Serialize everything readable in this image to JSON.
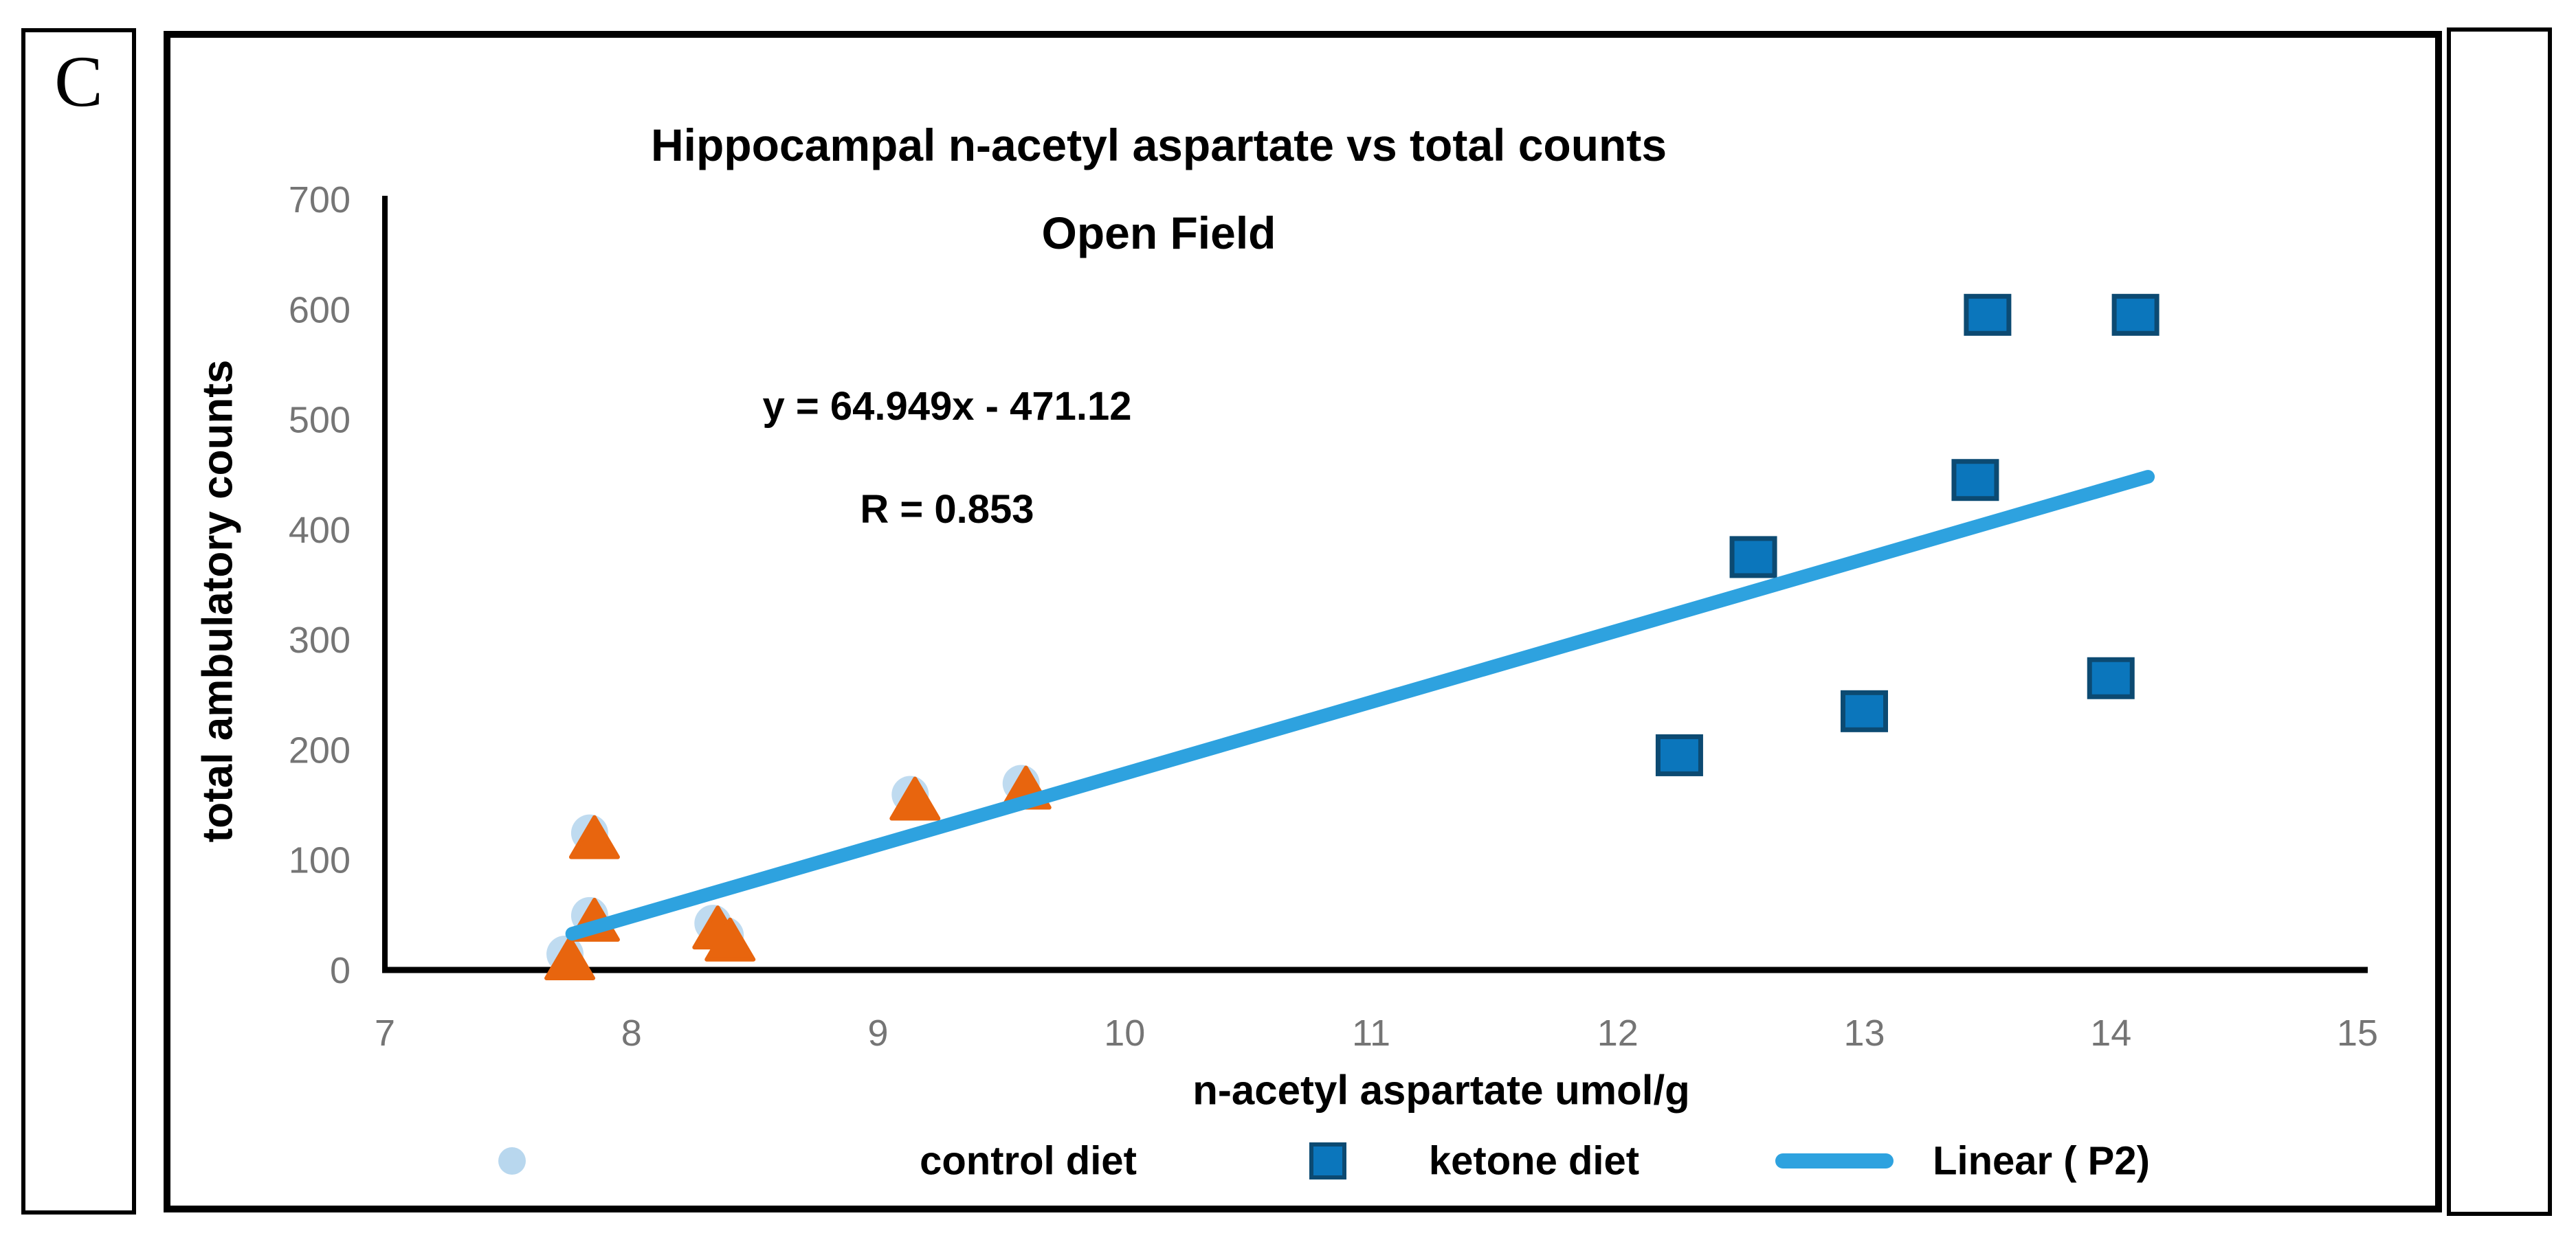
{
  "figure": {
    "panel_label": "C"
  },
  "chart_data": {
    "type": "scatter",
    "title_line1": "Hippocampal n-acetyl aspartate vs total counts",
    "title_line2": "Open Field",
    "annotation": {
      "equation": "y = 64.949x - 471.12",
      "r_value": "R = 0.853"
    },
    "xlabel": "n-acetyl aspartate umol/g",
    "ylabel": "total ambulatory counts",
    "xlim": [
      7,
      15
    ],
    "ylim": [
      0,
      700
    ],
    "x_ticks": [
      7,
      8,
      9,
      10,
      11,
      12,
      13,
      14,
      15
    ],
    "y_ticks": [
      0,
      100,
      200,
      300,
      400,
      500,
      600,
      700
    ],
    "grid": false,
    "legend_position": "bottom",
    "tick_color": "#757575",
    "axis_color": "#000000",
    "series": [
      {
        "name": "control diet",
        "marker": "triangle",
        "color": "#E8650E",
        "halo_color": "#B8D7EE",
        "points": [
          [
            7.75,
            10
          ],
          [
            7.85,
            45
          ],
          [
            7.85,
            120
          ],
          [
            8.35,
            38
          ],
          [
            8.4,
            27
          ],
          [
            9.15,
            155
          ],
          [
            9.6,
            165
          ]
        ]
      },
      {
        "name": "ketone diet",
        "marker": "square",
        "color": "#0B76BC",
        "border_color": "#0C4A72",
        "points": [
          [
            12.25,
            195
          ],
          [
            12.55,
            375
          ],
          [
            13.0,
            235
          ],
          [
            13.45,
            445
          ],
          [
            13.5,
            595
          ],
          [
            14.0,
            265
          ],
          [
            14.1,
            595
          ]
        ]
      }
    ],
    "trendline": {
      "name": "Linear ( P2)",
      "color": "#2EA2DF",
      "slope": 64.949,
      "intercept": -471.12,
      "x_start": 7.76,
      "x_end": 14.15
    },
    "legend": [
      {
        "label": "control diet",
        "marker": "circle",
        "color": "#B8D7EE"
      },
      {
        "label": "ketone diet",
        "marker": "square",
        "color": "#0B76BC",
        "border_color": "#0C4A72"
      },
      {
        "label": "Linear ( P2)",
        "marker": "line",
        "color": "#2EA2DF"
      }
    ]
  }
}
